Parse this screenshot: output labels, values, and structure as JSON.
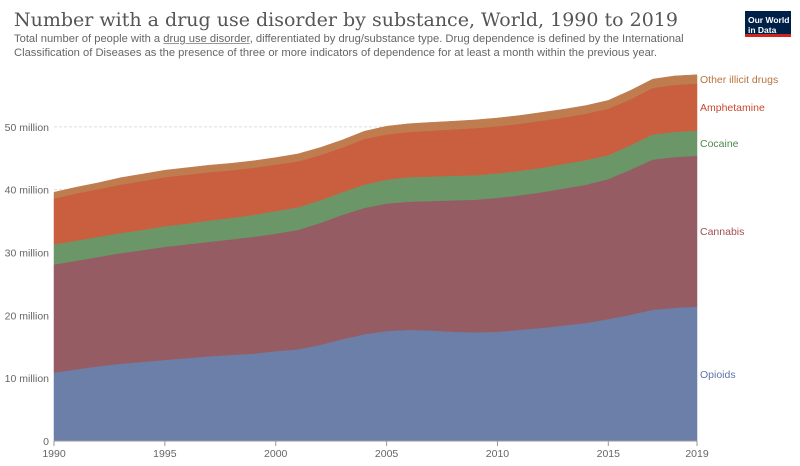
{
  "header": {
    "title": "Number with a drug use disorder by substance, World, 1990 to 2019",
    "subtitle_before": "Total number of people with a ",
    "subtitle_link": "drug use disorder",
    "subtitle_after": ", differentiated by drug/substance type. Drug dependence is defined by the International Classification of Diseases as the presence of three or more indicators of dependence for at least a month within the previous year.",
    "logo_line1": "Our World",
    "logo_line2": "in Data"
  },
  "chart_data": {
    "type": "area",
    "stacked": true,
    "x": [
      1990,
      1991,
      1992,
      1993,
      1994,
      1995,
      1996,
      1997,
      1998,
      1999,
      2000,
      2001,
      2002,
      2003,
      2004,
      2005,
      2006,
      2007,
      2008,
      2009,
      2010,
      2011,
      2012,
      2013,
      2014,
      2015,
      2016,
      2017,
      2018,
      2019
    ],
    "series": [
      {
        "name": "Opioids",
        "color": "#6b7fa8",
        "values": [
          10.9,
          11.4,
          11.9,
          12.3,
          12.6,
          12.9,
          13.2,
          13.5,
          13.7,
          13.9,
          14.3,
          14.6,
          15.3,
          16.2,
          17.0,
          17.5,
          17.7,
          17.6,
          17.4,
          17.3,
          17.4,
          17.7,
          18.0,
          18.4,
          18.8,
          19.4,
          20.1,
          20.9,
          21.2,
          21.4
        ]
      },
      {
        "name": "Cannabis",
        "color": "#955c63",
        "values": [
          17.2,
          17.3,
          17.4,
          17.6,
          17.8,
          18.0,
          18.1,
          18.2,
          18.4,
          18.6,
          18.7,
          19.0,
          19.4,
          19.8,
          20.1,
          20.3,
          20.4,
          20.6,
          20.9,
          21.1,
          21.3,
          21.4,
          21.6,
          21.8,
          22.0,
          22.3,
          23.1,
          23.9,
          24.0,
          24.0
        ]
      },
      {
        "name": "Cocaine",
        "color": "#6b9668",
        "values": [
          3.2,
          3.2,
          3.2,
          3.2,
          3.2,
          3.3,
          3.3,
          3.4,
          3.4,
          3.5,
          3.6,
          3.6,
          3.6,
          3.6,
          3.7,
          3.8,
          3.9,
          3.9,
          3.9,
          3.9,
          3.9,
          3.9,
          3.9,
          3.9,
          3.9,
          3.8,
          3.9,
          4.0,
          4.0,
          4.0
        ]
      },
      {
        "name": "Amphetamine",
        "color": "#ca5f40",
        "values": [
          7.3,
          7.5,
          7.6,
          7.7,
          7.8,
          7.8,
          7.8,
          7.7,
          7.6,
          7.5,
          7.4,
          7.3,
          7.2,
          7.1,
          7.3,
          7.2,
          7.2,
          7.3,
          7.4,
          7.5,
          7.5,
          7.5,
          7.5,
          7.4,
          7.4,
          7.4,
          7.3,
          7.4,
          7.5,
          7.5
        ]
      },
      {
        "name": "Other illicit drugs",
        "color": "#bf7d4f",
        "values": [
          1.0,
          1.0,
          1.0,
          1.1,
          1.1,
          1.1,
          1.1,
          1.1,
          1.1,
          1.1,
          1.1,
          1.2,
          1.2,
          1.2,
          1.2,
          1.3,
          1.3,
          1.3,
          1.3,
          1.3,
          1.3,
          1.3,
          1.3,
          1.3,
          1.3,
          1.3,
          1.4,
          1.4,
          1.4,
          1.4
        ]
      }
    ],
    "y_ticks": [
      0,
      10,
      20,
      30,
      40,
      50
    ],
    "y_tick_labels": [
      "0",
      "10 million",
      "20 million",
      "30 million",
      "40 million",
      "50 million"
    ],
    "x_ticks": [
      1990,
      1995,
      2000,
      2005,
      2010,
      2015,
      2019
    ],
    "ylim": [
      0,
      60
    ],
    "xlim": [
      1990,
      2019
    ],
    "grid": "horizontal dashed",
    "legend": "inline labels at right end of series",
    "legend_colors": [
      "#5f74a8",
      "#a24e53",
      "#4d8a4a",
      "#c5492f",
      "#b8743e"
    ]
  }
}
